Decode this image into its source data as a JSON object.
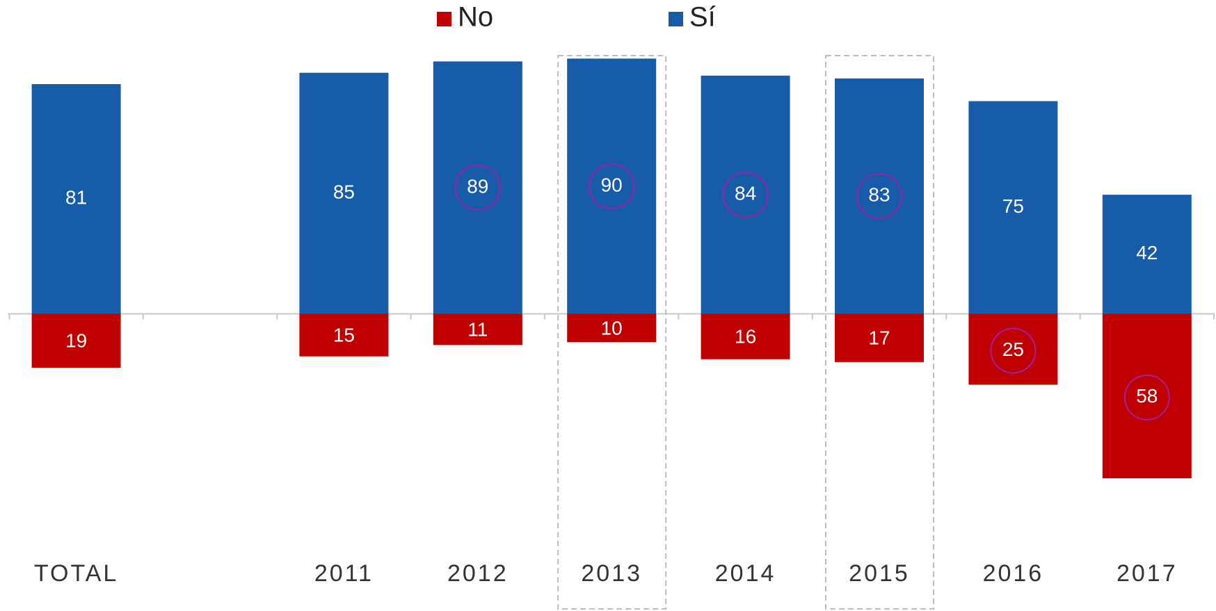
{
  "chart_data": {
    "type": "diverging_bar",
    "categories": [
      "TOTAL",
      null,
      "2011",
      "2012",
      "2013",
      "2014",
      "2015",
      "2016",
      "2017"
    ],
    "series": [
      {
        "name": "No",
        "color": "#c00000",
        "direction": "down",
        "values": [
          19,
          null,
          15,
          11,
          10,
          16,
          17,
          25,
          58
        ],
        "circled": [
          7,
          8
        ]
      },
      {
        "name": "Sí",
        "color": "#175ca8",
        "direction": "up",
        "values": [
          81,
          null,
          85,
          89,
          90,
          84,
          83,
          75,
          42
        ],
        "circled": [
          3,
          4,
          5,
          6
        ]
      }
    ],
    "boxed_categories": [
      4,
      6
    ],
    "legend": "top"
  }
}
